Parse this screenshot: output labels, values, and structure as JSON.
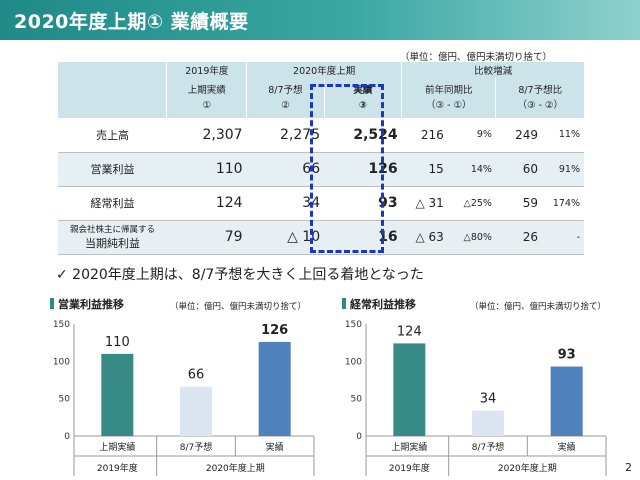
{
  "title": "2020年度上期① 業績概要",
  "table_unit": "（単位：億円、億円未満切り捨て）",
  "table": {
    "head_2019": "2019年度",
    "head_2020": "2020年度上期",
    "head_compare": "比較増減",
    "sub_2019_l1": "上期実績",
    "sub_2019_l2": "①",
    "sub_forecast_l1": "8/7予想",
    "sub_forecast_l2": "②",
    "sub_actual_l1": "実績",
    "sub_actual_l2": "③",
    "sub_yoy_l1": "前年同期比",
    "sub_yoy_l2": "（③ - ①）",
    "sub_vsfc_l1": "8/7予想比",
    "sub_vsfc_l2": "（③ - ②）",
    "rows": [
      {
        "label": "売上高",
        "label_sub": "",
        "v2019": "2,307",
        "forecast": "2,275",
        "actual": "2,524",
        "yoy": "216",
        "yoy_pct": "9%",
        "vsfc": "249",
        "vsfc_pct": "11%"
      },
      {
        "label": "営業利益",
        "label_sub": "",
        "v2019": "110",
        "forecast": "66",
        "actual": "126",
        "yoy": "15",
        "yoy_pct": "14%",
        "vsfc": "60",
        "vsfc_pct": "91%"
      },
      {
        "label": "経常利益",
        "label_sub": "",
        "v2019": "124",
        "forecast": "34",
        "actual": "93",
        "yoy": "△ 31",
        "yoy_pct": "△25%",
        "vsfc": "59",
        "vsfc_pct": "174%"
      },
      {
        "label": "親会社株主に帰属する",
        "label_sub": "当期純利益",
        "v2019": "79",
        "forecast": "△ 10",
        "actual": "16",
        "yoy": "△ 63",
        "yoy_pct": "△80%",
        "vsfc": "26",
        "vsfc_pct": "-"
      }
    ]
  },
  "conclusion": "✓  2020年度上期は、8/7予想を大きく上回る着地となった",
  "charts": [
    {
      "title": "営業利益推移",
      "unit": "（単位：億円、億円未満切り捨て）"
    },
    {
      "title": "経常利益推移",
      "unit": "（単位：億円、億円未満切り捨て）"
    }
  ],
  "chart_data": [
    {
      "type": "bar",
      "title": "営業利益推移",
      "categories": [
        "上期実績",
        "8/7予想",
        "実績"
      ],
      "groups": [
        "2019年度",
        "2020年度上期"
      ],
      "values": [
        110,
        66,
        126
      ],
      "ylim": [
        0,
        150
      ],
      "yticks": [
        0,
        50,
        100,
        150
      ],
      "colors": [
        "#388a87",
        "#dce6f2",
        "#4f81bd"
      ],
      "bold_labels": [
        false,
        false,
        true
      ]
    },
    {
      "type": "bar",
      "title": "経常利益推移",
      "categories": [
        "上期実績",
        "8/7予想",
        "実績"
      ],
      "groups": [
        "2019年度",
        "2020年度上期"
      ],
      "values": [
        124,
        34,
        93
      ],
      "ylim": [
        0,
        150
      ],
      "yticks": [
        0,
        50,
        100,
        150
      ],
      "colors": [
        "#388a87",
        "#dce6f2",
        "#4f81bd"
      ],
      "bold_labels": [
        false,
        false,
        true
      ]
    }
  ],
  "page_number": "2"
}
